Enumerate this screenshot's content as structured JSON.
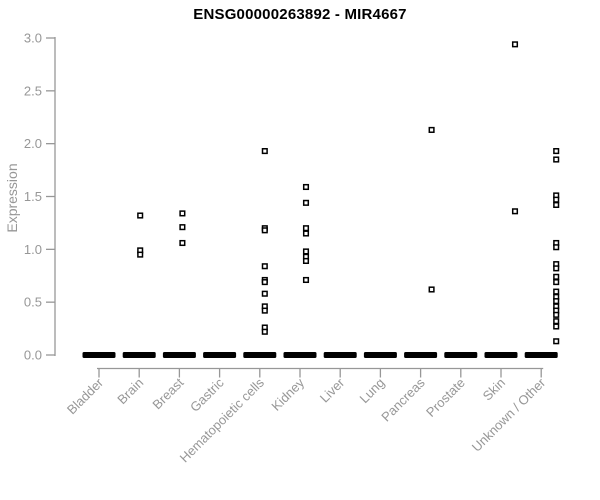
{
  "page": {
    "background_color": "#ffffff"
  },
  "chart_data": {
    "type": "scatter",
    "variant": "strip-plot",
    "title": "ENSG00000263892 - MIR4667",
    "xlabel": "",
    "ylabel": "Expression",
    "ylim": [
      0.0,
      3.0
    ],
    "grid": false,
    "legend_position": "none",
    "yticks": [
      {
        "value": 0.0,
        "label": "0.0"
      },
      {
        "value": 0.5,
        "label": "0.5"
      },
      {
        "value": 1.0,
        "label": "1.0"
      },
      {
        "value": 1.5,
        "label": "1.5"
      },
      {
        "value": 2.0,
        "label": "2.0"
      },
      {
        "value": 2.5,
        "label": "2.5"
      },
      {
        "value": 3.0,
        "label": "3.0"
      }
    ],
    "categories": [
      "Bladder",
      "Brain",
      "Breast",
      "Gastric",
      "Hematopoietic cells",
      "Kidney",
      "Liver",
      "Lung",
      "Pancreas",
      "Prostate",
      "Skin",
      "Unknown / Other"
    ],
    "series": [
      {
        "category": "Bladder",
        "zero_cluster": true,
        "nonzero_values": []
      },
      {
        "category": "Brain",
        "zero_cluster": true,
        "nonzero_values": [
          1.32,
          0.99,
          0.95
        ]
      },
      {
        "category": "Breast",
        "zero_cluster": true,
        "nonzero_values": [
          1.34,
          1.21,
          1.06
        ]
      },
      {
        "category": "Gastric",
        "zero_cluster": true,
        "nonzero_values": []
      },
      {
        "category": "Hematopoietic cells",
        "zero_cluster": true,
        "nonzero_values": [
          1.93,
          1.2,
          1.18,
          0.84,
          0.71,
          0.69,
          0.58,
          0.46,
          0.42,
          0.26,
          0.22
        ]
      },
      {
        "category": "Kidney",
        "zero_cluster": true,
        "nonzero_values": [
          1.59,
          1.44,
          1.2,
          1.15,
          0.98,
          0.93,
          0.89,
          0.71
        ]
      },
      {
        "category": "Liver",
        "zero_cluster": true,
        "nonzero_values": []
      },
      {
        "category": "Lung",
        "zero_cluster": true,
        "nonzero_values": []
      },
      {
        "category": "Pancreas",
        "zero_cluster": true,
        "nonzero_values": [
          2.13,
          0.62
        ]
      },
      {
        "category": "Prostate",
        "zero_cluster": true,
        "nonzero_values": []
      },
      {
        "category": "Skin",
        "zero_cluster": true,
        "nonzero_values": [
          2.94,
          1.36
        ]
      },
      {
        "category": "Unknown / Other",
        "zero_cluster": true,
        "nonzero_values": [
          1.93,
          1.85,
          1.51,
          1.47,
          1.42,
          1.06,
          1.02,
          0.86,
          0.82,
          0.74,
          0.69,
          0.6,
          0.55,
          0.51,
          0.46,
          0.42,
          0.38,
          0.32,
          0.27,
          0.13
        ]
      }
    ],
    "colors": {
      "title": "#000000",
      "axis": "#979797",
      "tick_label": "#979797",
      "point_stroke": "#000000",
      "point_fill": "#ffffff",
      "zero_bar": "#000000"
    },
    "layout_hints": {
      "marker": "open-square",
      "x_label_rotation_deg": -45,
      "jitter_dx": [
        0,
        1,
        3,
        0,
        5,
        6,
        0,
        0,
        11,
        0,
        14,
        15
      ]
    }
  }
}
